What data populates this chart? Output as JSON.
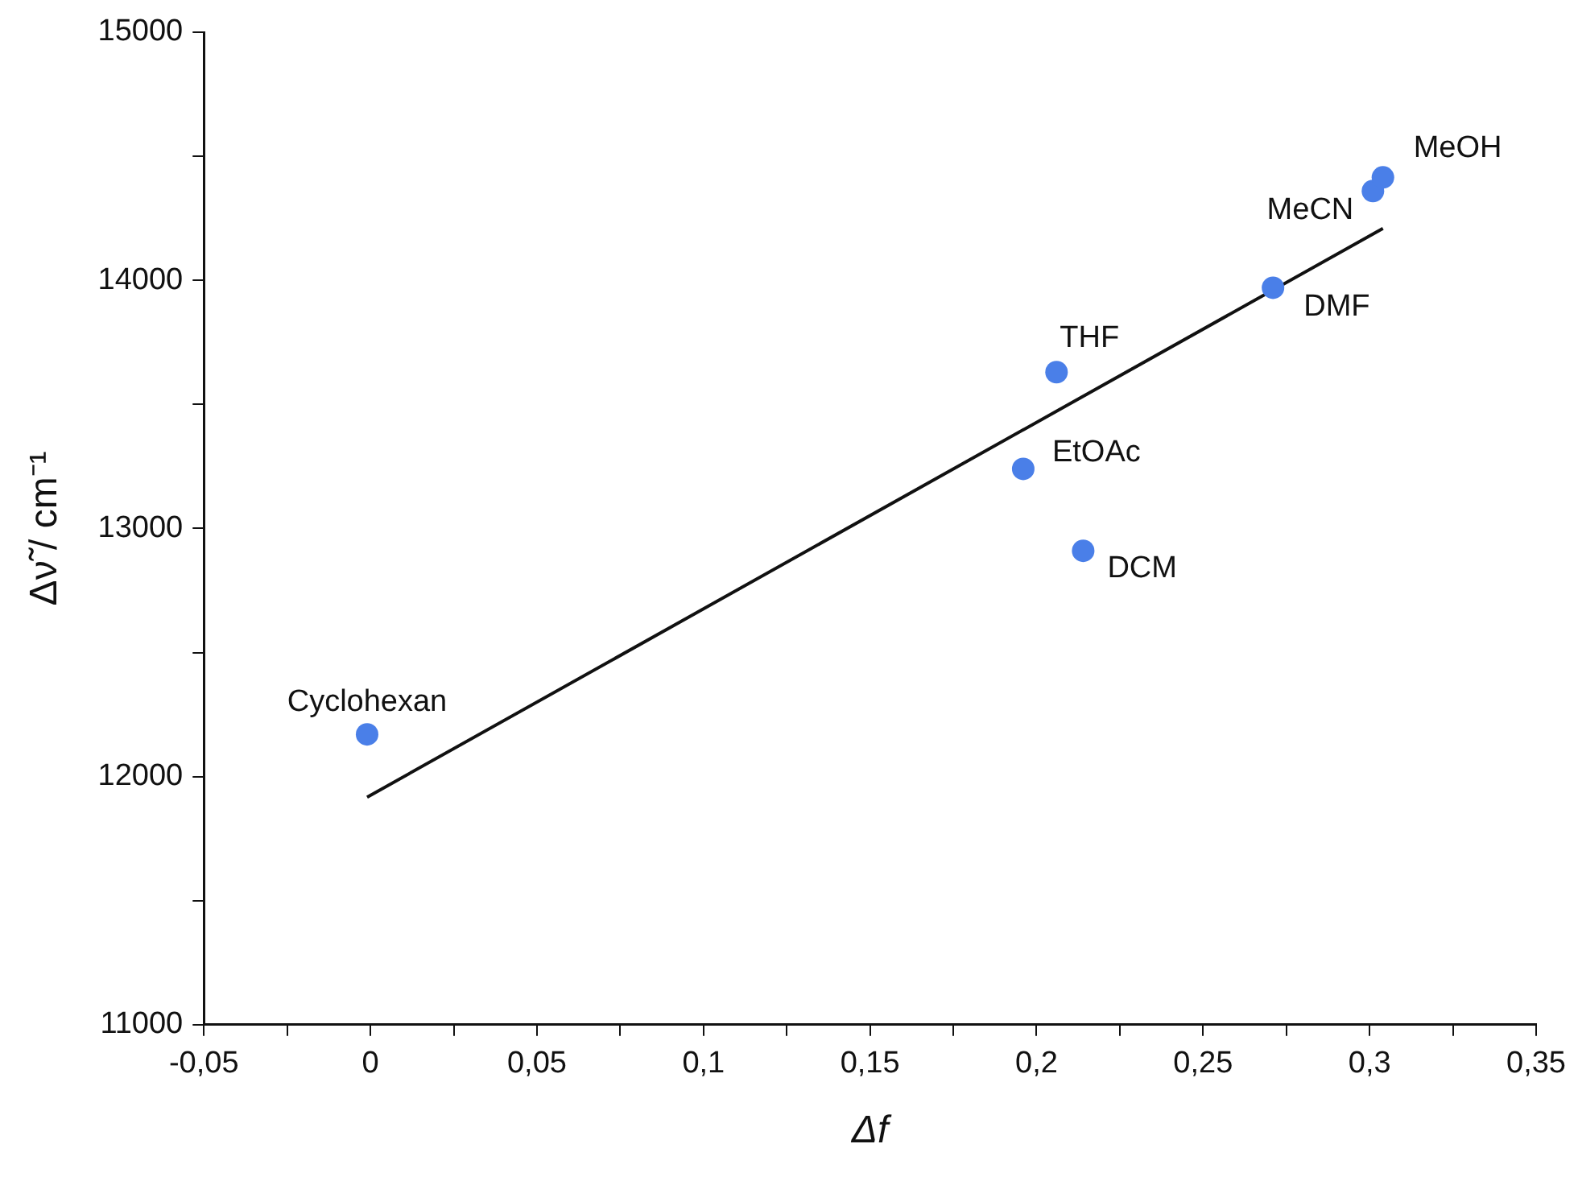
{
  "chart_data": {
    "type": "scatter",
    "xlabel": "Δf",
    "ylabel": "Δν̃ / cm⁻¹",
    "series": [
      {
        "color": "#4a7fe8",
        "marker": "circle",
        "x": [
          -0.001,
          0.196,
          0.206,
          0.214,
          0.271,
          0.301,
          0.304
        ],
        "values": [
          12170,
          13240,
          13630,
          12910,
          13970,
          14360,
          14415
        ]
      },
      {
        "type": "line",
        "color": "#111111",
        "marker": "none",
        "line_style": "solid",
        "x": [
          -0.001,
          0.304
        ],
        "values": [
          11917,
          14209
        ]
      }
    ],
    "annotations": [
      {
        "text": "Cyclohexan",
        "x": -0.001,
        "y": 12170
      },
      {
        "text": "EtOAc",
        "x": 0.196,
        "y": 13240
      },
      {
        "text": "THF",
        "x": 0.206,
        "y": 13630
      },
      {
        "text": "DCM",
        "x": 0.214,
        "y": 12910
      },
      {
        "text": "DMF",
        "x": 0.271,
        "y": 13970
      },
      {
        "text": "MeCN",
        "x": 0.301,
        "y": 14360
      },
      {
        "text": "MeOH",
        "x": 0.304,
        "y": 14415
      }
    ],
    "xlim": [
      -0.05,
      0.35
    ],
    "xticks": [
      {
        "value": -0.05,
        "label": "-0,05"
      },
      {
        "value": -0.025,
        "label": null
      },
      {
        "value": 0,
        "label": "0"
      },
      {
        "value": 0.025,
        "label": null
      },
      {
        "value": 0.05,
        "label": "0,05"
      },
      {
        "value": 0.075,
        "label": null
      },
      {
        "value": 0.1,
        "label": "0,1"
      },
      {
        "value": 0.125,
        "label": null
      },
      {
        "value": 0.15,
        "label": "0,15"
      },
      {
        "value": 0.175,
        "label": null
      },
      {
        "value": 0.2,
        "label": "0,2"
      },
      {
        "value": 0.225,
        "label": null
      },
      {
        "value": 0.25,
        "label": "0,25"
      },
      {
        "value": 0.275,
        "label": null
      },
      {
        "value": 0.3,
        "label": "0,3"
      },
      {
        "value": 0.325,
        "label": null
      },
      {
        "value": 0.35,
        "label": "0,35"
      }
    ],
    "ylim": [
      11000,
      15000
    ],
    "yticks": [
      11000,
      {
        "value": 11500,
        "label": null
      },
      12000,
      {
        "value": 12500,
        "label": null
      },
      13000,
      {
        "value": 13500,
        "label": null
      },
      14000,
      {
        "value": 14500,
        "label": null
      },
      15000
    ],
    "grid": false,
    "legend": false
  }
}
